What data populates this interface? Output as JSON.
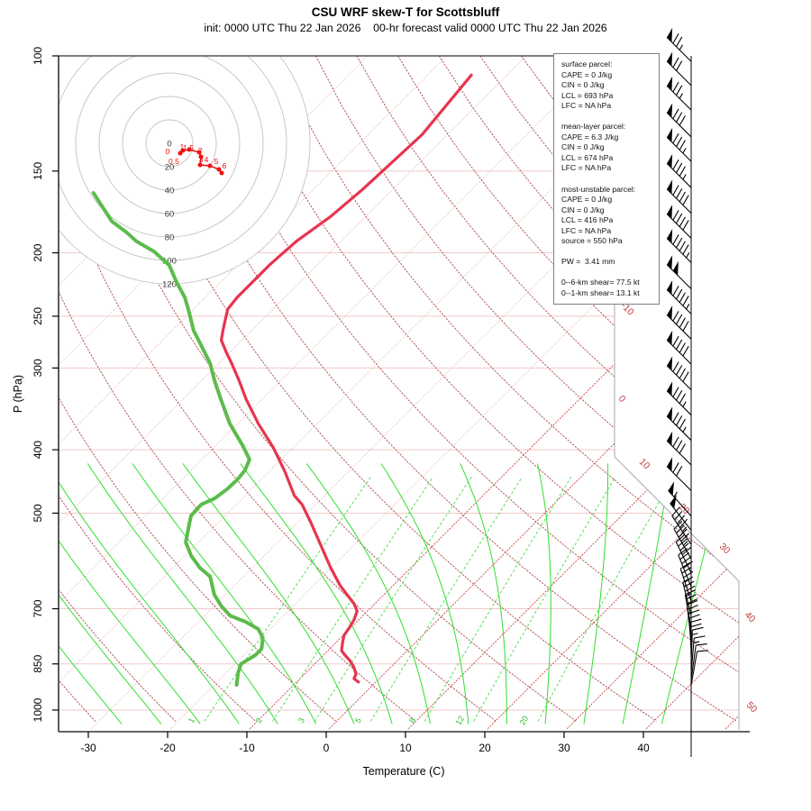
{
  "header": {
    "title": "CSU WRF skew-T for Scottsbluff",
    "subtitle": "init: 0000 UTC Thu 22 Jan 2026    00-hr forecast valid 0000 UTC Thu 22 Jan 2026"
  },
  "axes": {
    "pressure": {
      "label": "P (hPa)",
      "ticks": [
        100,
        150,
        200,
        250,
        300,
        400,
        500,
        700,
        850,
        1000
      ]
    },
    "temperature": {
      "label": "Temperature (C)",
      "ticks": [
        -30,
        -20,
        -10,
        0,
        10,
        20,
        30,
        40
      ]
    }
  },
  "parcel_info": {
    "lines": [
      "surface parcel:",
      "CAPE = 0 J/kg",
      "CIN = 0 J/kg",
      "LCL = 693 hPa",
      "LFC = NA hPa",
      "",
      "mean-layer parcel:",
      "CAPE = 6.3 J/kg",
      "CIN = 0 J/kg",
      "LCL = 674 hPa",
      "LFC = NA hPa",
      "",
      "most-unstable parcel:",
      "CAPE = 0 J/kg",
      "CIN = 0 J/kg",
      "LCL = 416 hPa",
      "LFC = NA hPa",
      "source = 550 hPa",
      "",
      "PW =  3.41 mm",
      "",
      "0--6-km shear= 77.5 kt",
      "0--1-km shear= 13.1 kt"
    ]
  },
  "chart_data": {
    "type": "skew-t-log-p",
    "station": "Scottsbluff",
    "pressure_ticks_hPa": [
      100,
      150,
      200,
      250,
      300,
      400,
      500,
      700,
      850,
      1000
    ],
    "temp_ticks_C": [
      -30,
      -20,
      -10,
      0,
      10,
      20,
      30,
      40
    ],
    "isotherm_step_C": 10,
    "isotherm_exit_labels_C": [
      -10,
      0,
      10,
      20,
      30,
      40,
      50
    ],
    "dry_adiabat_step_K": 10,
    "moist_adiabat_start_temps_C": [
      -30,
      -25,
      -20,
      -15,
      -10,
      -5,
      0,
      5,
      10,
      15,
      20,
      25,
      30,
      35,
      40
    ],
    "mixing_ratio_lines_g_kg": [
      1,
      2,
      3,
      5,
      8,
      12,
      20
    ],
    "temperature_profile_p_T": [
      [
        107,
        -64.5
      ],
      [
        132,
        -63.2
      ],
      [
        160,
        -63.8
      ],
      [
        176,
        -64.4
      ],
      [
        192,
        -65.6
      ],
      [
        208,
        -66
      ],
      [
        222,
        -66
      ],
      [
        234,
        -66
      ],
      [
        244,
        -65.7
      ],
      [
        263,
        -63.6
      ],
      [
        272,
        -62.6
      ],
      [
        283,
        -60.6
      ],
      [
        295,
        -58.4
      ],
      [
        314,
        -55.2
      ],
      [
        335,
        -52
      ],
      [
        365,
        -47.4
      ],
      [
        397,
        -42.5
      ],
      [
        432,
        -38
      ],
      [
        470,
        -33.8
      ],
      [
        485,
        -31.7
      ],
      [
        517,
        -28.3
      ],
      [
        563,
        -23.9
      ],
      [
        606,
        -20.1
      ],
      [
        646,
        -16.6
      ],
      [
        688,
        -12.6
      ],
      [
        706,
        -11.3
      ],
      [
        728,
        -10.6
      ],
      [
        749,
        -10.2
      ],
      [
        769,
        -9.9
      ],
      [
        788,
        -9.2
      ],
      [
        811,
        -8.3
      ],
      [
        824,
        -7.3
      ],
      [
        840,
        -6
      ],
      [
        859,
        -4.7
      ],
      [
        881,
        -3.5
      ],
      [
        895,
        -3.2
      ],
      [
        906,
        -2.2
      ]
    ],
    "dewpoint_profile_p_Td": [
      [
        162,
        -97.3
      ],
      [
        169,
        -94.8
      ],
      [
        179,
        -91.4
      ],
      [
        186,
        -88.2
      ],
      [
        192,
        -85.8
      ],
      [
        196,
        -83.8
      ],
      [
        199,
        -82.3
      ],
      [
        209,
        -78.6
      ],
      [
        222,
        -75.5
      ],
      [
        234,
        -72.6
      ],
      [
        247,
        -70.1
      ],
      [
        263,
        -67.3
      ],
      [
        277,
        -64.5
      ],
      [
        295,
        -61.1
      ],
      [
        314,
        -58.3
      ],
      [
        335,
        -55.2
      ],
      [
        365,
        -51
      ],
      [
        395,
        -46.5
      ],
      [
        414,
        -44
      ],
      [
        430,
        -43.2
      ],
      [
        444,
        -43
      ],
      [
        460,
        -43.1
      ],
      [
        475,
        -43.5
      ],
      [
        485,
        -44.4
      ],
      [
        504,
        -44.3
      ],
      [
        517,
        -43.6
      ],
      [
        554,
        -41.6
      ],
      [
        581,
        -39.2
      ],
      [
        606,
        -36.6
      ],
      [
        625,
        -34.2
      ],
      [
        666,
        -31.4
      ],
      [
        692,
        -29.2
      ],
      [
        717,
        -26.8
      ],
      [
        733,
        -24
      ],
      [
        752,
        -21.5
      ],
      [
        776,
        -19.8
      ],
      [
        806,
        -18.6
      ],
      [
        824,
        -18.6
      ],
      [
        850,
        -19.3
      ],
      [
        878,
        -18.5
      ],
      [
        915,
        -17.2
      ]
    ],
    "wind_barbs_p_spd_dir": [
      [
        102,
        75,
        315
      ],
      [
        111,
        70,
        315
      ],
      [
        121,
        75,
        315
      ],
      [
        133,
        80,
        315
      ],
      [
        145,
        85,
        315
      ],
      [
        159,
        85,
        315
      ],
      [
        174,
        90,
        315
      ],
      [
        190,
        90,
        315
      ],
      [
        207,
        95,
        315
      ],
      [
        227,
        100,
        315
      ],
      [
        248,
        95,
        315
      ],
      [
        271,
        90,
        315
      ],
      [
        296,
        90,
        315
      ],
      [
        324,
        90,
        315
      ],
      [
        354,
        85,
        315
      ],
      [
        387,
        85,
        315
      ],
      [
        422,
        80,
        315
      ],
      [
        462,
        70,
        315
      ],
      [
        505,
        55,
        318
      ],
      [
        531,
        50,
        322
      ],
      [
        558,
        45,
        326
      ],
      [
        587,
        45,
        330
      ],
      [
        617,
        40,
        334
      ],
      [
        648,
        40,
        338
      ],
      [
        682,
        35,
        342
      ],
      [
        717,
        35,
        346
      ],
      [
        750,
        30,
        350
      ],
      [
        778,
        25,
        353
      ],
      [
        803,
        20,
        356
      ],
      [
        828,
        20,
        359
      ],
      [
        851,
        15,
        2
      ],
      [
        875,
        15,
        5
      ],
      [
        897,
        10,
        8
      ],
      [
        916,
        10,
        10
      ]
    ],
    "hodograph": {
      "ring_step_kt": 20,
      "ring_labels": [
        0,
        20,
        40,
        60,
        80,
        100,
        120
      ],
      "trace_h_km_u_v": [
        {
          "h": "0",
          "dx": 9.2,
          "dy": 8.5
        },
        {
          "h": "0.5",
          "dx": 11.5,
          "dy": 6.2
        },
        {
          "h": "1",
          "dx": 16.9,
          "dy": 5.4
        },
        {
          "h": "1.5",
          "dx": 25.4,
          "dy": 7.7
        },
        {
          "h": "2",
          "dx": 26.9,
          "dy": 11.5
        },
        {
          "h": "3",
          "dx": 26.2,
          "dy": 18.5
        },
        {
          "h": "4",
          "dx": 34.6,
          "dy": 19.2
        },
        {
          "h": "5",
          "dx": 42.3,
          "dy": 22.3
        },
        {
          "h": "6",
          "dx": 44.6,
          "dy": 25.4
        }
      ]
    },
    "colors": {
      "temperature_curve": "#e8344e",
      "dewpoint_curve": "#5cbb4c",
      "dry_adiabat": "#a5403c",
      "isotherm_warm": "#c84343",
      "isotherm_cold": "#eac2c2",
      "pressure_line": "#f2c9c9",
      "moist_adiabat": "#2ee02e",
      "mixing_ratio": "#55e055",
      "hodo_ring": "#c8c8c8",
      "hodo_trace": "#ee1111",
      "iso_label": "#c03a3a",
      "mix_label": "#2fbf2f",
      "barb": "#000000",
      "axis_dark": "#333333",
      "boundary_light": "#aaaaaa"
    }
  }
}
